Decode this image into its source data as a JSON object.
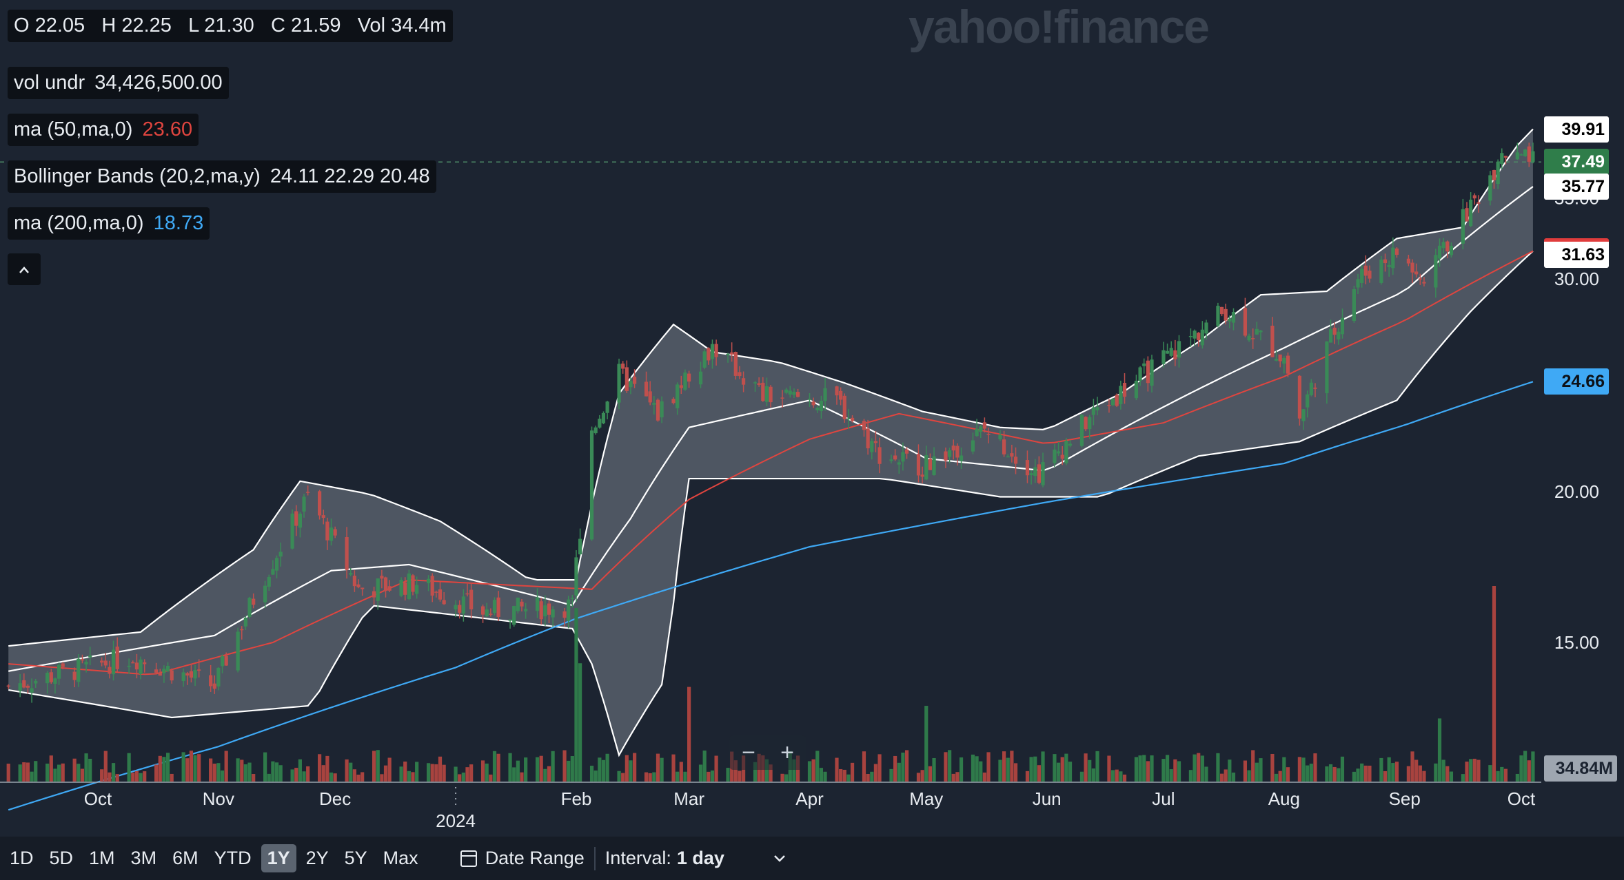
{
  "watermark": "yahoo!finance",
  "legend": {
    "ohlc": "O 22.05   H 22.25   L 21.30   C 21.59   Vol 34.4m",
    "vol_label": "vol undr",
    "vol_value": "34,426,500.00",
    "ma50_label": "ma (50,ma,0)",
    "ma50_value": "23.60",
    "bb_label": "Bollinger Bands (20,2,ma,y)",
    "bb_values": "24.11 22.29 20.48",
    "ma200_label": "ma (200,ma,0)",
    "ma200_value": "18.73",
    "collapse_icon": "chevron-up-icon"
  },
  "price_badges": [
    {
      "label": "39.91",
      "bg": "#ffffff",
      "fg": "#000000",
      "price": 39.91
    },
    {
      "label": "37.49",
      "bg": "#2f7d4a",
      "fg": "#ffffff",
      "price": 37.49
    },
    {
      "label": "35.77",
      "bg": "#ffffff",
      "fg": "#000000",
      "price": 35.77
    },
    {
      "label": "31.63",
      "bg": "#ffffff",
      "fg": "#000000",
      "price": 31.63,
      "accent": "#e03c3c"
    },
    {
      "label": "24.66",
      "bg": "#3fa9f5",
      "fg": "#0d1117",
      "price": 24.66
    }
  ],
  "volume_badge": "34.84M",
  "zoom": {
    "minus": "−",
    "plus": "+"
  },
  "colors": {
    "up": "#3a8a57",
    "down": "#c0504d",
    "ma50": "#e0453f",
    "ma200": "#3fa9f5",
    "band": "#ffffff",
    "band_fill": "#b8c0cb"
  },
  "chart_data": {
    "type": "candlestick",
    "title": "",
    "x_tick_labels": [
      "Oct",
      "Nov",
      "Dec",
      "2024",
      "Feb",
      "Mar",
      "Apr",
      "May",
      "Jun",
      "Jul",
      "Aug",
      "Sep",
      "Oct"
    ],
    "y_tick_labels": [
      "15.00",
      "20.00",
      "30.00",
      "35.00"
    ],
    "y_range": [
      10.4,
      40.6
    ],
    "y_scale": "log",
    "x_range": [
      "2023-09-08",
      "2024-10-04"
    ],
    "last_close_line": 37.49,
    "grid": false,
    "price_anchors": [
      {
        "date": "2023-09-08",
        "close": 13.8
      },
      {
        "date": "2023-10-10",
        "close": 14.6
      },
      {
        "date": "2023-10-31",
        "close": 13.8
      },
      {
        "date": "2023-11-24",
        "close": 19.8
      },
      {
        "date": "2023-12-07",
        "close": 16.6
      },
      {
        "date": "2023-12-22",
        "close": 16.8
      },
      {
        "date": "2024-01-08",
        "close": 15.9
      },
      {
        "date": "2024-01-31",
        "close": 16.1
      },
      {
        "date": "2024-02-05",
        "close": 22.5
      },
      {
        "date": "2024-02-12",
        "close": 25.0
      },
      {
        "date": "2024-02-22",
        "close": 23.2
      },
      {
        "date": "2024-03-07",
        "close": 26.4
      },
      {
        "date": "2024-03-20",
        "close": 24.0
      },
      {
        "date": "2024-04-08",
        "close": 23.8
      },
      {
        "date": "2024-04-19",
        "close": 21.5
      },
      {
        "date": "2024-05-01",
        "close": 21.0
      },
      {
        "date": "2024-05-16",
        "close": 22.5
      },
      {
        "date": "2024-05-30",
        "close": 20.7
      },
      {
        "date": "2024-06-13",
        "close": 23.2
      },
      {
        "date": "2024-07-01",
        "close": 25.7
      },
      {
        "date": "2024-07-17",
        "close": 28.3
      },
      {
        "date": "2024-08-01",
        "close": 25.8
      },
      {
        "date": "2024-08-05",
        "close": 23.0
      },
      {
        "date": "2024-08-20",
        "close": 30.0
      },
      {
        "date": "2024-08-30",
        "close": 31.6
      },
      {
        "date": "2024-09-06",
        "close": 29.7
      },
      {
        "date": "2024-09-19",
        "close": 34.8
      },
      {
        "date": "2024-09-26",
        "close": 37.9
      },
      {
        "date": "2024-10-04",
        "close": 37.49
      }
    ],
    "ma50": [
      {
        "date": "2023-09-08",
        "value": 14.4
      },
      {
        "date": "2023-10-15",
        "value": 14.1
      },
      {
        "date": "2023-11-15",
        "value": 15.0
      },
      {
        "date": "2023-12-20",
        "value": 16.9
      },
      {
        "date": "2024-01-20",
        "value": 16.7
      },
      {
        "date": "2024-02-05",
        "value": 16.6
      },
      {
        "date": "2024-03-01",
        "value": 19.7
      },
      {
        "date": "2024-04-01",
        "value": 22.1
      },
      {
        "date": "2024-04-24",
        "value": 23.2
      },
      {
        "date": "2024-06-01",
        "value": 21.9
      },
      {
        "date": "2024-07-01",
        "value": 22.8
      },
      {
        "date": "2024-08-01",
        "value": 24.9
      },
      {
        "date": "2024-09-01",
        "value": 27.7
      },
      {
        "date": "2024-10-04",
        "value": 31.63
      }
    ],
    "ma200": [
      {
        "date": "2023-09-08",
        "value": 10.9
      },
      {
        "date": "2023-11-01",
        "value": 12.3
      },
      {
        "date": "2024-01-01",
        "value": 14.3
      },
      {
        "date": "2024-02-01",
        "value": 15.7
      },
      {
        "date": "2024-04-01",
        "value": 18.0
      },
      {
        "date": "2024-06-01",
        "value": 19.6
      },
      {
        "date": "2024-08-01",
        "value": 21.1
      },
      {
        "date": "2024-09-01",
        "value": 22.7
      },
      {
        "date": "2024-10-04",
        "value": 24.66
      }
    ],
    "bollinger": {
      "upper": [
        {
          "date": "2023-09-08",
          "value": 14.9
        },
        {
          "date": "2023-10-12",
          "value": 15.3
        },
        {
          "date": "2023-11-10",
          "value": 17.9
        },
        {
          "date": "2023-11-22",
          "value": 20.4
        },
        {
          "date": "2023-12-10",
          "value": 19.9
        },
        {
          "date": "2023-12-28",
          "value": 18.9
        },
        {
          "date": "2024-01-20",
          "value": 16.9
        },
        {
          "date": "2024-02-01",
          "value": 16.9
        },
        {
          "date": "2024-02-12",
          "value": 24.1
        },
        {
          "date": "2024-02-26",
          "value": 27.5
        },
        {
          "date": "2024-03-07",
          "value": 26.1
        },
        {
          "date": "2024-03-24",
          "value": 25.6
        },
        {
          "date": "2024-04-10",
          "value": 24.6
        },
        {
          "date": "2024-04-30",
          "value": 23.3
        },
        {
          "date": "2024-05-20",
          "value": 22.6
        },
        {
          "date": "2024-06-01",
          "value": 22.5
        },
        {
          "date": "2024-06-20",
          "value": 24.1
        },
        {
          "date": "2024-07-10",
          "value": 26.6
        },
        {
          "date": "2024-07-26",
          "value": 29.1
        },
        {
          "date": "2024-08-12",
          "value": 29.3
        },
        {
          "date": "2024-08-30",
          "value": 32.4
        },
        {
          "date": "2024-09-16",
          "value": 33.1
        },
        {
          "date": "2024-09-30",
          "value": 38.7
        },
        {
          "date": "2024-10-04",
          "value": 39.91
        }
      ],
      "middle": [
        {
          "date": "2023-09-08",
          "value": 14.2
        },
        {
          "date": "2023-10-31",
          "value": 15.2
        },
        {
          "date": "2023-11-30",
          "value": 17.2
        },
        {
          "date": "2023-12-20",
          "value": 17.4
        },
        {
          "date": "2024-01-31",
          "value": 16.1
        },
        {
          "date": "2024-02-15",
          "value": 19.0
        },
        {
          "date": "2024-03-01",
          "value": 22.6
        },
        {
          "date": "2024-04-01",
          "value": 23.8
        },
        {
          "date": "2024-05-01",
          "value": 21.3
        },
        {
          "date": "2024-06-01",
          "value": 20.8
        },
        {
          "date": "2024-07-01",
          "value": 23.5
        },
        {
          "date": "2024-08-01",
          "value": 26.3
        },
        {
          "date": "2024-09-01",
          "value": 29.3
        },
        {
          "date": "2024-10-04",
          "value": 35.77
        }
      ],
      "lower": [
        {
          "date": "2023-09-08",
          "value": 13.7
        },
        {
          "date": "2023-10-20",
          "value": 13.0
        },
        {
          "date": "2023-11-25",
          "value": 13.3
        },
        {
          "date": "2023-12-10",
          "value": 16.1
        },
        {
          "date": "2024-01-31",
          "value": 15.4
        },
        {
          "date": "2024-02-05",
          "value": 14.4
        },
        {
          "date": "2024-02-12",
          "value": 12.1
        },
        {
          "date": "2024-02-24",
          "value": 14.0
        },
        {
          "date": "2024-03-01",
          "value": 20.5
        },
        {
          "date": "2024-04-20",
          "value": 20.5
        },
        {
          "date": "2024-05-20",
          "value": 19.8
        },
        {
          "date": "2024-06-15",
          "value": 19.8
        },
        {
          "date": "2024-07-10",
          "value": 21.4
        },
        {
          "date": "2024-08-05",
          "value": 22.0
        },
        {
          "date": "2024-08-30",
          "value": 23.8
        },
        {
          "date": "2024-09-18",
          "value": 28.2
        },
        {
          "date": "2024-10-04",
          "value": 31.63
        }
      ]
    },
    "volume_axis_label": "34.84M",
    "volume_spikes": [
      {
        "date": "2024-02-01",
        "value": 110
      },
      {
        "date": "2024-02-02",
        "value": 75
      },
      {
        "date": "2024-03-01",
        "value": 60
      },
      {
        "date": "2024-05-01",
        "value": 48
      },
      {
        "date": "2024-09-24",
        "value": 124
      },
      {
        "date": "2024-09-10",
        "value": 40
      }
    ]
  },
  "toolbar": {
    "ranges": [
      "1D",
      "5D",
      "1M",
      "3M",
      "6M",
      "YTD",
      "1Y",
      "2Y",
      "5Y",
      "Max"
    ],
    "active_range": "1Y",
    "date_range_label": "Date Range",
    "interval_label": "Interval:",
    "interval_value": "1 day"
  }
}
